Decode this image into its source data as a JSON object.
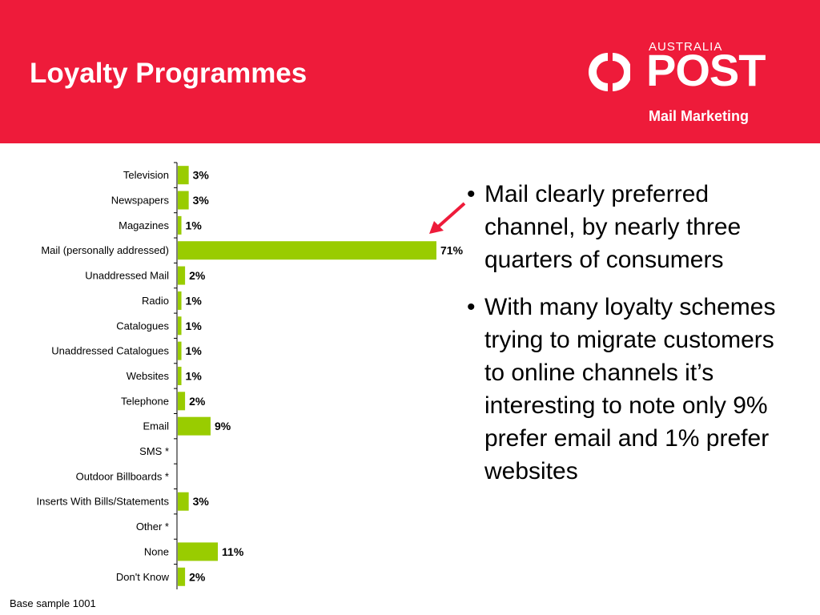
{
  "header": {
    "title": "Loyalty Programmes",
    "logo": {
      "country": "AUSTRALIA",
      "brand": "POST",
      "division": "Mail Marketing"
    },
    "background_color": "#ee1b3a"
  },
  "chart_data": {
    "type": "bar",
    "orientation": "horizontal",
    "categories": [
      "Television",
      "Newspapers",
      "Magazines",
      "Mail (personally addressed)",
      "Unaddressed Mail",
      "Radio",
      "Catalogues",
      "Unaddressed Catalogues",
      "Websites",
      "Telephone",
      "Email",
      "SMS *",
      "Outdoor Billboards *",
      "Inserts With Bills/Statements",
      "Other *",
      "None",
      "Don't Know"
    ],
    "values": [
      3,
      3,
      1,
      71,
      2,
      1,
      1,
      1,
      1,
      2,
      9,
      null,
      null,
      3,
      null,
      11,
      2
    ],
    "data_labels": [
      "3%",
      "3%",
      "1%",
      "71%",
      "2%",
      "1%",
      "1%",
      "1%",
      "1%",
      "2%",
      "9%",
      "",
      "",
      "3%",
      "",
      "11%",
      "2%"
    ],
    "bar_color": "#99cc00",
    "xlim": [
      0,
      71
    ]
  },
  "callout": {
    "arrow_color": "#ee1b3a",
    "arrow_icon": "arrow-icon"
  },
  "bullets": [
    "Mail clearly preferred channel, by nearly three quarters of consumers",
    "With many loyalty schemes trying to migrate customers to online channels it’s interesting to note only 9% prefer email and 1% prefer websites"
  ],
  "bullet_symbol": "•",
  "footnote": "Base sample 1001"
}
